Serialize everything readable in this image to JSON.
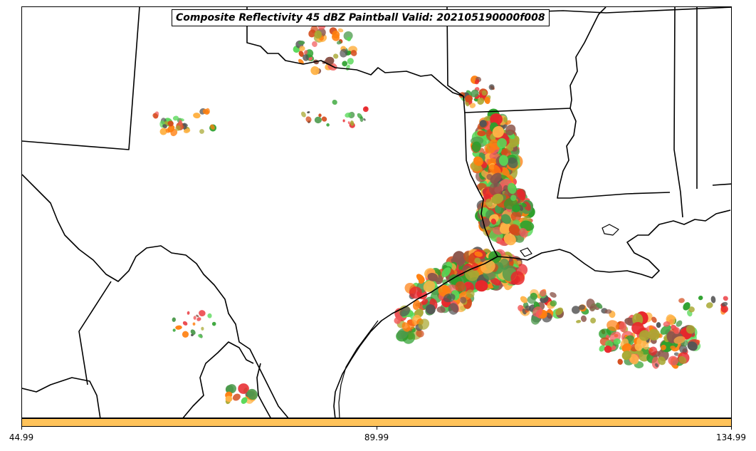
{
  "title": "Composite Reflectivity 45 dBZ Paintball Valid: 202105190000f008",
  "colorbar": {
    "color": "#ffc35a",
    "ticks": [
      "44.99",
      "89.99",
      "134.99"
    ]
  },
  "map": {
    "region": "Southern Plains / Gulf Coast",
    "boundary_color": "#000000",
    "member_colors": [
      "#e8262b",
      "#ff7f0e",
      "#ffb347",
      "#2ca02c",
      "#57d857",
      "#8c564b",
      "#555555",
      "#a8a832",
      "#4c9a4c",
      "#f25c5c",
      "#d44b1b"
    ]
  }
}
